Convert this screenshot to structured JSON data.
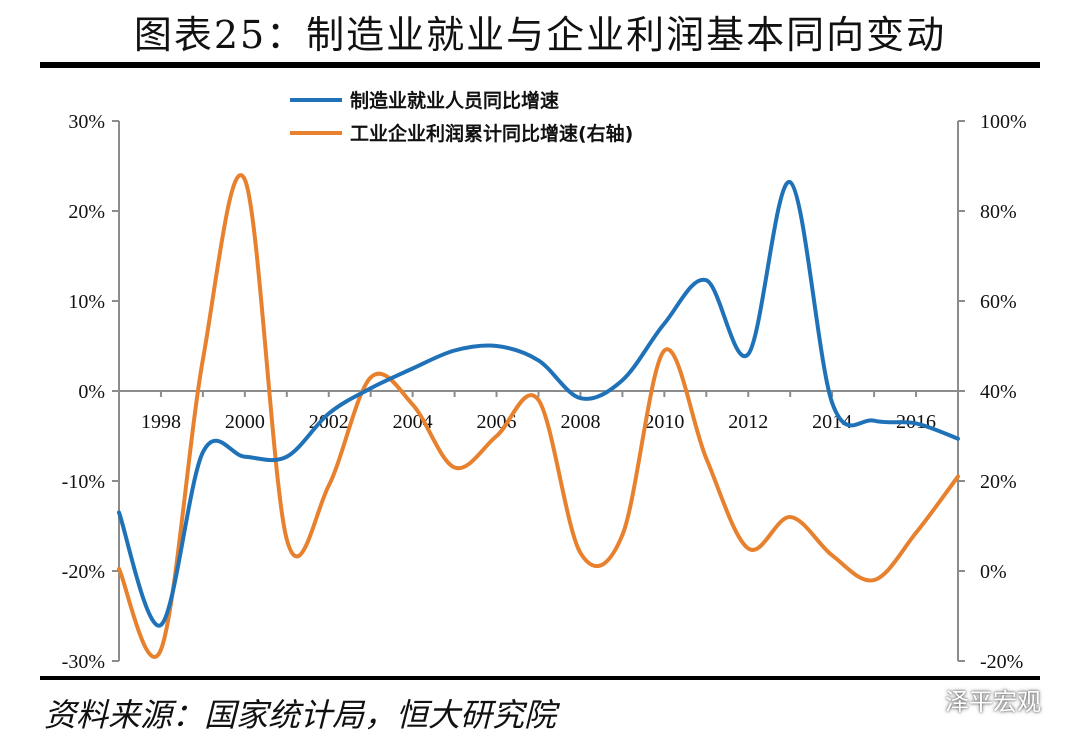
{
  "title": "图表25：制造业就业与企业利润基本同向变动",
  "source": "资料来源：国家统计局，恒大研究院",
  "watermark": {
    "icon": "wechat-icon",
    "text": "泽平宏观"
  },
  "chart_data": {
    "type": "line",
    "title": "图表25：制造业就业与企业利润基本同向变动",
    "legend_position": "top-center",
    "grid": false,
    "x": [
      1997,
      1998,
      1999,
      2000,
      2001,
      2002,
      2003,
      2004,
      2005,
      2006,
      2007,
      2008,
      2009,
      2010,
      2011,
      2012,
      2013,
      2014,
      2015,
      2016,
      2017
    ],
    "x_ticks": [
      "1998",
      "2000",
      "2002",
      "2004",
      "2006",
      "2008",
      "2010",
      "2012",
      "2014",
      "2016"
    ],
    "x_tick_values": [
      1998,
      2000,
      2002,
      2004,
      2006,
      2008,
      2010,
      2012,
      2014,
      2016
    ],
    "left_axis": {
      "ylim": [
        -30,
        30
      ],
      "ticks": [
        -30,
        -20,
        -10,
        0,
        10,
        20,
        30
      ],
      "tick_labels": [
        "-30%",
        "-20%",
        "-10%",
        "0%",
        "10%",
        "20%",
        "30%"
      ]
    },
    "right_axis": {
      "ylim": [
        -20,
        100
      ],
      "ticks": [
        -20,
        0,
        20,
        40,
        60,
        80,
        100
      ],
      "tick_labels": [
        "-20%",
        "0%",
        "20%",
        "40%",
        "60%",
        "80%",
        "100%"
      ]
    },
    "series": [
      {
        "name": "制造业就业人员同比增速",
        "axis": "left",
        "color": "#1f72b8",
        "values": [
          -13.5,
          -26.0,
          -6.8,
          -7.3,
          -7.3,
          -2.5,
          0.3,
          2.5,
          4.5,
          5.0,
          3.4,
          -0.8,
          1.2,
          7.5,
          12.3,
          4.1,
          23.2,
          -1.3,
          -3.3,
          -3.6,
          -5.3
        ]
      },
      {
        "name": "工业企业利润累计同比增速(右轴)",
        "axis": "right",
        "color": "#e8812e",
        "values": [
          0.5,
          -17.5,
          47.0,
          87.0,
          7.0,
          19.0,
          43.0,
          37.0,
          23.0,
          30.0,
          38.0,
          4.0,
          8.0,
          49.0,
          25.0,
          5.0,
          12.0,
          3.5,
          -2.0,
          8.5,
          21.0
        ]
      }
    ]
  }
}
